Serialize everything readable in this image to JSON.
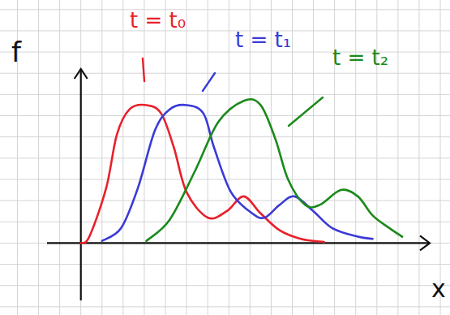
{
  "chart_data": {
    "type": "line",
    "x_label": "x",
    "y_label": "f",
    "xlim": [
      -1.6,
      16.5
    ],
    "ylim": [
      -2.7,
      8.2
    ],
    "grid": true,
    "tick_labels": false,
    "series": [
      {
        "name": "t = t₀",
        "color": "#e8202a",
        "x": [
          0,
          0.4,
          1.2,
          1.7,
          2.3,
          3.1,
          3.8,
          4.4,
          5.0,
          6.0,
          6.9,
          7.7,
          8.5,
          9.4,
          10.4,
          11.5
        ],
        "values": [
          0,
          0.3,
          2.6,
          5.1,
          6.3,
          6.5,
          6.1,
          4.5,
          2.4,
          1.2,
          1.5,
          2.2,
          1.4,
          0.6,
          0.2,
          0.05
        ]
      },
      {
        "name": "t = t₁",
        "color": "#3a3ad8",
        "x": [
          1.0,
          1.9,
          2.7,
          3.5,
          4.2,
          5.0,
          5.8,
          6.3,
          7.1,
          8.1,
          8.7,
          9.4,
          10.1,
          11.0,
          11.9,
          13.1,
          13.8
        ],
        "values": [
          0.1,
          0.7,
          2.6,
          5.3,
          6.3,
          6.5,
          6.1,
          4.5,
          2.4,
          1.4,
          1.2,
          1.8,
          2.2,
          1.5,
          0.7,
          0.3,
          0.2
        ]
      },
      {
        "name": "t = t₂",
        "color": "#1a8a1a",
        "x": [
          3.1,
          4.2,
          5.4,
          6.5,
          7.7,
          8.5,
          9.2,
          9.8,
          10.6,
          11.3,
          12.3,
          13.1,
          13.8,
          14.6,
          15.2
        ],
        "values": [
          0.1,
          1.1,
          3.4,
          5.7,
          6.7,
          6.5,
          4.9,
          3.0,
          1.8,
          1.8,
          2.5,
          2.2,
          1.3,
          0.7,
          0.3
        ]
      }
    ]
  }
}
